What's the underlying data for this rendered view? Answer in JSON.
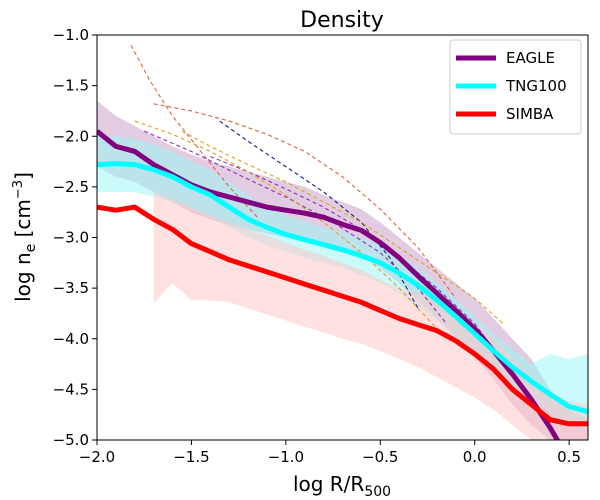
{
  "chart_data": {
    "type": "line",
    "title": "Density",
    "xlabel": "log R/R",
    "xlabel_sub": "500",
    "ylabel": "log n",
    "ylabel_sub": "e",
    "ylabel_unit": " [cm",
    "ylabel_unit_sup": "−3",
    "ylabel_unit_close": "]",
    "xlim": [
      -2.0,
      0.6
    ],
    "ylim": [
      -5.0,
      -1.0
    ],
    "xticks": [
      -2.0,
      -1.5,
      -1.0,
      -0.5,
      0.0,
      0.5
    ],
    "xtick_labels": [
      "−2.0",
      "−1.5",
      "−1.0",
      "−0.5",
      "0.0",
      "0.5"
    ],
    "yticks": [
      -1.0,
      -1.5,
      -2.0,
      -2.5,
      -3.0,
      -3.5,
      -4.0,
      -4.5,
      -5.0
    ],
    "ytick_labels": [
      "−1.0",
      "−1.5",
      "−2.0",
      "−2.5",
      "−3.0",
      "−3.5",
      "−4.0",
      "−4.5",
      "−5.0"
    ],
    "legend_position": "top-right",
    "series": [
      {
        "name": "EAGLE",
        "color": "#800080",
        "band_color": "#c8a2c8",
        "x": [
          -2.0,
          -1.9,
          -1.8,
          -1.7,
          -1.6,
          -1.5,
          -1.4,
          -1.3,
          -1.2,
          -1.1,
          -1.0,
          -0.9,
          -0.8,
          -0.7,
          -0.6,
          -0.5,
          -0.4,
          -0.3,
          -0.2,
          -0.1,
          0.0,
          0.1,
          0.2,
          0.3,
          0.4,
          0.5,
          0.6
        ],
        "values": [
          -1.95,
          -2.1,
          -2.15,
          -2.28,
          -2.38,
          -2.48,
          -2.55,
          -2.6,
          -2.65,
          -2.7,
          -2.73,
          -2.76,
          -2.8,
          -2.87,
          -2.93,
          -3.05,
          -3.2,
          -3.38,
          -3.55,
          -3.72,
          -3.9,
          -4.12,
          -4.35,
          -4.6,
          -4.88,
          -5.2,
          -5.5
        ],
        "upper": [
          -1.65,
          -1.8,
          -1.9,
          -2.0,
          -2.1,
          -2.18,
          -2.25,
          -2.3,
          -2.35,
          -2.4,
          -2.45,
          -2.5,
          -2.58,
          -2.65,
          -2.72,
          -2.85,
          -3.0,
          -3.15,
          -3.3,
          -3.45,
          -3.6,
          -3.8,
          -4.0,
          -4.2,
          -4.5,
          -4.7,
          -4.8
        ],
        "lower": [
          -2.3,
          -2.4,
          -2.45,
          -2.55,
          -2.65,
          -2.75,
          -2.82,
          -2.88,
          -2.92,
          -2.96,
          -3.0,
          -3.05,
          -3.1,
          -3.15,
          -3.2,
          -3.3,
          -3.45,
          -3.62,
          -3.8,
          -3.98,
          -4.18,
          -4.4,
          -4.65,
          -4.85,
          -5.0,
          -5.1,
          -5.2
        ]
      },
      {
        "name": "TNG100",
        "color": "#00ffff",
        "band_color": "#9ff5f5",
        "x": [
          -2.0,
          -1.9,
          -1.8,
          -1.7,
          -1.6,
          -1.5,
          -1.4,
          -1.3,
          -1.2,
          -1.1,
          -1.0,
          -0.9,
          -0.8,
          -0.7,
          -0.6,
          -0.5,
          -0.4,
          -0.3,
          -0.2,
          -0.1,
          0.0,
          0.1,
          0.2,
          0.3,
          0.4,
          0.5,
          0.6
        ],
        "values": [
          -2.28,
          -2.27,
          -2.28,
          -2.33,
          -2.4,
          -2.5,
          -2.58,
          -2.7,
          -2.82,
          -2.9,
          -2.97,
          -3.02,
          -3.07,
          -3.12,
          -3.18,
          -3.25,
          -3.35,
          -3.47,
          -3.62,
          -3.78,
          -3.95,
          -4.12,
          -4.28,
          -4.42,
          -4.55,
          -4.67,
          -4.72
        ],
        "upper": [
          -1.98,
          -2.0,
          -2.02,
          -2.08,
          -2.15,
          -2.25,
          -2.33,
          -2.45,
          -2.58,
          -2.7,
          -2.78,
          -2.84,
          -2.9,
          -2.95,
          -3.0,
          -3.08,
          -3.18,
          -3.3,
          -3.45,
          -3.6,
          -3.78,
          -3.95,
          -4.1,
          -4.25,
          -4.15,
          -4.2,
          -4.15
        ],
        "lower": [
          -2.55,
          -2.55,
          -2.55,
          -2.6,
          -2.65,
          -2.73,
          -2.8,
          -2.9,
          -3.0,
          -3.08,
          -3.14,
          -3.2,
          -3.25,
          -3.3,
          -3.37,
          -3.45,
          -3.55,
          -3.68,
          -3.82,
          -3.98,
          -4.12,
          -4.3,
          -4.45,
          -4.6,
          -4.72,
          -4.82,
          -4.9
        ]
      },
      {
        "name": "SIMBA",
        "color": "#ff0000",
        "band_color": "#ffc8c8",
        "x": [
          -2.0,
          -1.9,
          -1.8,
          -1.7,
          -1.6,
          -1.5,
          -1.4,
          -1.3,
          -1.2,
          -1.1,
          -1.0,
          -0.9,
          -0.8,
          -0.7,
          -0.6,
          -0.5,
          -0.4,
          -0.3,
          -0.2,
          -0.1,
          0.0,
          0.1,
          0.2,
          0.3,
          0.4,
          0.5,
          0.6
        ],
        "values": [
          -2.7,
          -2.73,
          -2.7,
          -2.82,
          -2.92,
          -3.06,
          -3.14,
          -3.22,
          -3.28,
          -3.34,
          -3.4,
          -3.46,
          -3.52,
          -3.58,
          -3.64,
          -3.72,
          -3.8,
          -3.86,
          -3.92,
          -4.02,
          -4.15,
          -4.3,
          -4.5,
          -4.65,
          -4.8,
          -4.84,
          -4.84
        ],
        "upper": [
          null,
          null,
          null,
          -2.55,
          -2.62,
          -2.7,
          -2.78,
          -2.85,
          -2.92,
          -2.98,
          -3.05,
          -3.12,
          -3.18,
          -3.25,
          -3.32,
          -3.42,
          -3.5,
          -3.55,
          -3.6,
          -3.7,
          -3.85,
          -4.0,
          -4.2,
          -4.38,
          -4.52,
          -4.62,
          -4.65
        ],
        "lower": [
          null,
          null,
          null,
          -3.65,
          -3.45,
          -3.62,
          -3.62,
          -3.64,
          -3.7,
          -3.76,
          -3.82,
          -3.88,
          -3.94,
          -4.0,
          -4.05,
          -4.12,
          -4.2,
          -4.28,
          -4.38,
          -4.48,
          -4.58,
          -4.7,
          -4.85,
          -5.0,
          -5.1,
          -5.15,
          -5.2
        ]
      }
    ],
    "observations": [
      {
        "color": "#e06040",
        "x": [
          -1.82,
          -1.72,
          -1.6,
          -1.45,
          -1.3,
          -1.15
        ],
        "values": [
          -1.1,
          -1.45,
          -1.8,
          -2.15,
          -2.5,
          -2.8
        ]
      },
      {
        "color": "#e06040",
        "x": [
          -1.7,
          -1.5,
          -1.3,
          -1.1,
          -0.9,
          -0.7,
          -0.5,
          -0.3,
          -0.1
        ],
        "values": [
          -1.68,
          -1.75,
          -1.85,
          -1.98,
          -2.15,
          -2.4,
          -2.72,
          -3.1,
          -3.6
        ]
      },
      {
        "color": "#1a1a80",
        "x": [
          -1.35,
          -1.2,
          -1.0,
          -0.8,
          -0.6,
          -0.45,
          -0.3
        ],
        "values": [
          -1.85,
          -2.05,
          -2.3,
          -2.55,
          -2.85,
          -3.2,
          -3.7
        ]
      },
      {
        "color": "#e0a020",
        "x": [
          -1.55,
          -1.4,
          -1.2,
          -1.0,
          -0.8,
          -0.6,
          -0.4,
          -0.2,
          0.0,
          0.15
        ],
        "values": [
          -1.95,
          -2.1,
          -2.28,
          -2.45,
          -2.65,
          -2.85,
          -3.1,
          -3.35,
          -3.6,
          -3.85
        ]
      },
      {
        "color": "#9030b0",
        "x": [
          -1.75,
          -1.5,
          -1.25,
          -1.0,
          -0.75,
          -0.5,
          -0.3,
          -0.15
        ],
        "values": [
          -1.95,
          -2.15,
          -2.38,
          -2.6,
          -2.85,
          -3.15,
          -3.5,
          -3.85
        ]
      },
      {
        "color": "#9030b0",
        "x": [
          -1.4,
          -1.2,
          -1.0,
          -0.8,
          -0.6,
          -0.4,
          -0.2,
          0.0,
          0.1
        ],
        "values": [
          -2.2,
          -2.35,
          -2.52,
          -2.7,
          -2.92,
          -3.2,
          -3.5,
          -3.85,
          -4.1
        ]
      },
      {
        "color": "#e0a020",
        "x": [
          -1.8,
          -1.6,
          -1.4,
          -1.2,
          -1.0,
          -0.8,
          -0.6,
          -0.4,
          -0.2
        ],
        "values": [
          -1.85,
          -1.98,
          -2.15,
          -2.35,
          -2.58,
          -2.85,
          -3.15,
          -3.5,
          -3.9
        ]
      }
    ]
  }
}
